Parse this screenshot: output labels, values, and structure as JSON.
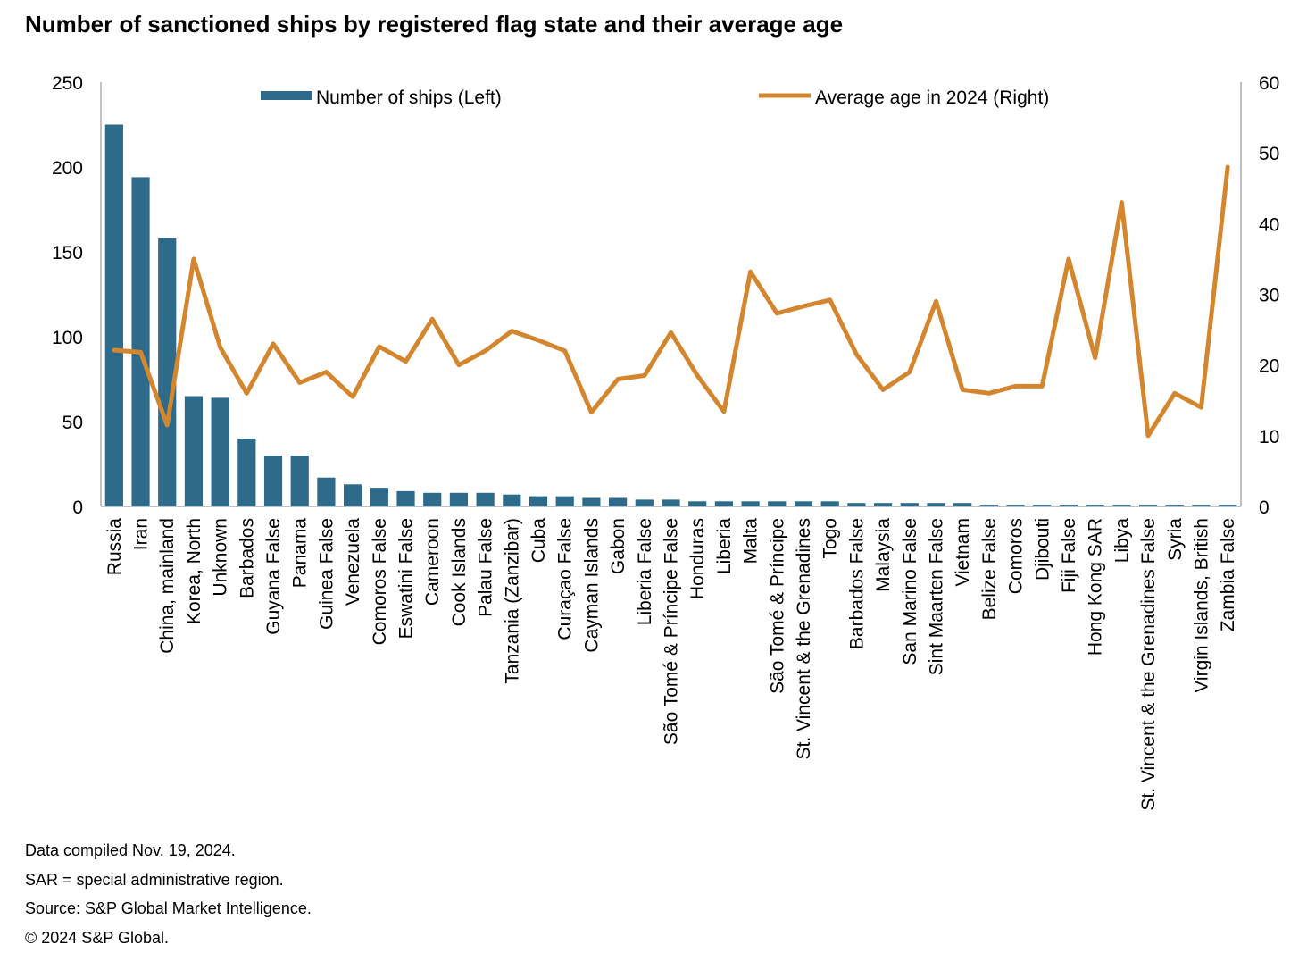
{
  "chart_data": {
    "type": "bar",
    "title": "Number of sanctioned ships by registered flag state and their average age",
    "categories": [
      "Russia",
      "Iran",
      "China, mainland",
      "Korea, North",
      "Unknown",
      "Barbados",
      "Guyana False",
      "Panama",
      "Guinea False",
      "Venezuela",
      "Comoros False",
      "Eswatini False",
      "Cameroon",
      "Cook Islands",
      "Palau False",
      "Tanzania (Zanzibar)",
      "Cuba",
      "Curaçao False",
      "Cayman Islands",
      "Gabon",
      "Liberia False",
      "São Tomé & Príncipe False",
      "Honduras",
      "Liberia",
      "Malta",
      "São Tomé & Príncipe",
      "St. Vincent & the Grenadines",
      "Togo",
      "Barbados False",
      "Malaysia",
      "San Marino False",
      "Sint Maarten False",
      "Vietnam",
      "Belize False",
      "Comoros",
      "Djibouti",
      "Fiji False",
      "Hong Kong SAR",
      "Libya",
      "St. Vincent & the Grenadines False",
      "Syria",
      "Virgin Islands, British",
      "Zambia False"
    ],
    "series": [
      {
        "name": "Number of ships (Left)",
        "type": "bar",
        "axis": "left",
        "color": "#2e6a8a",
        "values": [
          225,
          194,
          158,
          65,
          64,
          40,
          30,
          30,
          17,
          13,
          11,
          9,
          8,
          8,
          8,
          7,
          6,
          6,
          5,
          5,
          4,
          4,
          3,
          3,
          3,
          3,
          3,
          3,
          2,
          2,
          2,
          2,
          2,
          1,
          1,
          1,
          1,
          1,
          1,
          1,
          1,
          1,
          1
        ]
      },
      {
        "name": "Average age in 2024 (Right)",
        "type": "line",
        "axis": "right",
        "color": "#d4862f",
        "values": [
          22.1,
          21.8,
          11.5,
          35,
          22.5,
          16,
          23,
          17.5,
          19,
          15.5,
          22.6,
          20.5,
          26.5,
          20,
          22,
          24.8,
          23.5,
          22,
          13.3,
          18,
          18.5,
          24.6,
          18.5,
          13.4,
          33.2,
          27.3,
          28.3,
          29.2,
          21.5,
          16.5,
          19,
          29,
          16.5,
          16,
          17,
          17,
          35,
          21,
          43,
          10,
          16,
          14,
          48
        ]
      }
    ],
    "left_axis": {
      "min": 0,
      "max": 250,
      "ticks": [
        "0",
        "50",
        "100",
        "150",
        "200",
        "250"
      ]
    },
    "right_axis": {
      "min": 0,
      "max": 60,
      "ticks": [
        "0",
        "10",
        "20",
        "30",
        "40",
        "50",
        "60"
      ]
    },
    "grid": false,
    "legend": "top"
  },
  "notes": [
    "Data compiled Nov. 19, 2024.",
    "SAR = special administrative region.",
    "Source: S&P Global Market Intelligence.",
    "© 2024 S&P Global."
  ]
}
